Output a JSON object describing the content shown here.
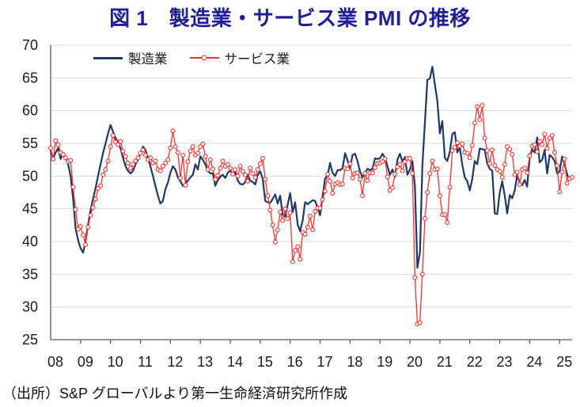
{
  "title": {
    "text": "図 1　製造業・サービス業 PMI の推移",
    "color": "#1F1F93"
  },
  "source_note": "（出所）S&P グローバルより第一生命経済研究所作成",
  "chart_data": {
    "type": "line",
    "title": "図 1　製造業・サービス業 PMI の推移",
    "x_unit": "monthly",
    "x_range": [
      "2008-01",
      "2025-06"
    ],
    "x_tick_labels": [
      "08",
      "09",
      "10",
      "11",
      "12",
      "13",
      "14",
      "15",
      "16",
      "17",
      "18",
      "19",
      "20",
      "21",
      "22",
      "23",
      "24",
      "25"
    ],
    "ylim": [
      25,
      70
    ],
    "y_ticks": [
      25,
      30,
      35,
      40,
      45,
      50,
      55,
      60,
      65,
      70
    ],
    "grid": true,
    "grid_color": "#D9D9D9",
    "axis_color": "#595959",
    "text_color": "#1A1A1A",
    "legend_position": "top-inside",
    "series": [
      {
        "name": "製造業",
        "color": "#1F3864",
        "marker": "none",
        "values": [
          53.8,
          52.7,
          53.6,
          54.3,
          52.6,
          53.4,
          52.8,
          51.8,
          50.0,
          46.5,
          42.0,
          40.2,
          39.0,
          38.3,
          40.0,
          42.5,
          44.8,
          46.5,
          48.2,
          50.0,
          51.8,
          53.5,
          55.0,
          56.5,
          57.8,
          56.8,
          55.8,
          55.2,
          54.2,
          52.8,
          51.5,
          50.8,
          50.4,
          50.8,
          51.8,
          52.5,
          53.5,
          54.5,
          54.0,
          52.8,
          51.5,
          50.0,
          48.5,
          47.0,
          45.8,
          46.2,
          48.0,
          49.0,
          50.5,
          51.5,
          51.0,
          49.8,
          49.2,
          48.5,
          48.8,
          49.3,
          49.8,
          50.2,
          51.8,
          51.0,
          53.0,
          52.5,
          51.8,
          50.8,
          50.4,
          50.4,
          48.5,
          49.4,
          49.9,
          50.2,
          49.7,
          50.5,
          50.8,
          50.4,
          50.6,
          49.3,
          48.8,
          48.7,
          49.1,
          50.2,
          49.3,
          49.1,
          48.7,
          50.2,
          50.7,
          49.6,
          46.2,
          46.0,
          45.9,
          46.5,
          47.2,
          45.8,
          47.0,
          44.1,
          43.8,
          45.6,
          47.4,
          44.5,
          46.0,
          42.6,
          41.6,
          43.2,
          46.0,
          45.7,
          46.0,
          46.3,
          46.2,
          45.2,
          44.0,
          46.9,
          49.6,
          50.1,
          52.0,
          50.5,
          50.0,
          50.9,
          50.9,
          51.2,
          53.5,
          52.4,
          51.2,
          53.2,
          53.4,
          52.3,
          50.7,
          49.8,
          50.5,
          51.1,
          50.9,
          51.1,
          52.7,
          52.6,
          52.7,
          53.4,
          52.8,
          51.5,
          50.2,
          51.0,
          49.9,
          52.5,
          53.4,
          52.2,
          52.9,
          50.2,
          51.0,
          52.3,
          48.4,
          36.0,
          38.3,
          51.6,
          58.2,
          64.7,
          64.9,
          66.7,
          64.0,
          61.5,
          56.5,
          58.4,
          52.8,
          52.3,
          53.7,
          56.4,
          56.7,
          53.6,
          54.4,
          51.7,
          49.8,
          49.2,
          47.8,
          49.6,
          52.3,
          51.8,
          54.2,
          54.1,
          54.0,
          51.9,
          51.1,
          50.8,
          44.3,
          44.2,
          47.5,
          49.2,
          47.0,
          44.3,
          47.1,
          46.6,
          47.8,
          50.1,
          49.0,
          48.6,
          49.4,
          48.4,
          52.8,
          54.1,
          53.6,
          55.9,
          52.1,
          52.5,
          54.0,
          50.4,
          53.2,
          52.9,
          52.3,
          50.4,
          50.7,
          53.0,
          51.8,
          50.3,
          49.4,
          49.9
        ]
      },
      {
        "name": "サービス業",
        "color": "#FE2E2E",
        "marker": "circle-open",
        "values": [
          54.3,
          52.6,
          55.4,
          54.8,
          53.6,
          53.3,
          52.8,
          52.2,
          52.4,
          48.3,
          44.9,
          41.9,
          42.3,
          41.0,
          39.5,
          42.2,
          44.0,
          45.2,
          46.5,
          48.1,
          48.5,
          50.2,
          51.0,
          52.3,
          54.5,
          56.2,
          55.2,
          54.8,
          55.3,
          53.8,
          53.0,
          52.0,
          51.2,
          51.8,
          52.3,
          52.8,
          53.5,
          54.0,
          53.2,
          52.5,
          52.8,
          52.0,
          52.3,
          51.0,
          50.8,
          51.5,
          52.0,
          52.5,
          54.3,
          56.9,
          54.5,
          53.6,
          49.7,
          53.2,
          48.6,
          52.2,
          53.8,
          54.5,
          53.2,
          53.5,
          54.5,
          54.9,
          53.0,
          51.0,
          52.5,
          51.1,
          49.5,
          50.1,
          51.2,
          52.3,
          51.5,
          51.8,
          51.2,
          50.3,
          51.0,
          50.0,
          51.5,
          50.7,
          50.2,
          49.2,
          51.2,
          50.4,
          49.8,
          51.0,
          51.9,
          52.7,
          49.5,
          47.0,
          44.8,
          42.5,
          39.9,
          41.8,
          44.5,
          43.2,
          45.0,
          43.5,
          44.4,
          36.9,
          38.6,
          39.2,
          37.3,
          41.4,
          41.1,
          42.2,
          43.9,
          41.8,
          44.6,
          45.1,
          45.1,
          46.4,
          47.7,
          50.3,
          49.2,
          47.4,
          48.8,
          49.0,
          48.7,
          48.8,
          51.2,
          51.1,
          51.9,
          49.7,
          50.4,
          50.5,
          49.5,
          47.0,
          50.4,
          49.3,
          50.5,
          50.5,
          51.3,
          51.9,
          52.0,
          52.2,
          52.6,
          49.9,
          47.8,
          48.2,
          50.3,
          51.4,
          51.8,
          50.8,
          52.2,
          52.7,
          52.7,
          50.4,
          34.5,
          27.4,
          27.6,
          35.0,
          43.5,
          47.5,
          50.4,
          52.3,
          51.0,
          51.1,
          47.0,
          44.1,
          44.1,
          42.9,
          48.3,
          53.9,
          54.4,
          55.1,
          54.6,
          54.9,
          53.6,
          53.5,
          52.8,
          54.7,
          58.1,
          60.6,
          58.6,
          60.8,
          55.8,
          53.9,
          51.9,
          54.0,
          51.6,
          51.0,
          50.7,
          49.8,
          51.8,
          54.5,
          54.1,
          53.3,
          50.2,
          50.6,
          48.7,
          51.0,
          51.2,
          50.5,
          53.1,
          54.6,
          54.8,
          53.7,
          55.3,
          54.8,
          56.4,
          54.2,
          55.8,
          56.2,
          53.6,
          51.6,
          47.6,
          50.6,
          52.6,
          48.9,
          49.6,
          49.8
        ]
      }
    ]
  }
}
